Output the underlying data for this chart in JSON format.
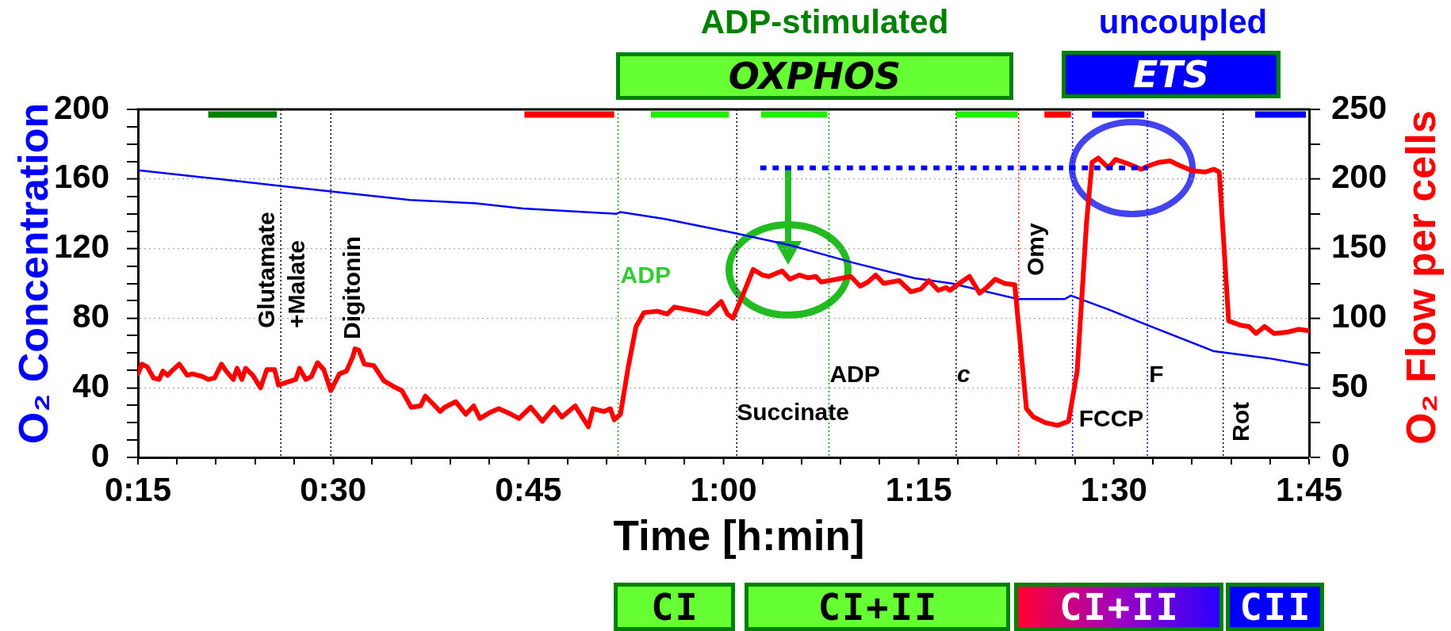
{
  "chart_data": {
    "type": "line",
    "xlabel": "Time [h:min]",
    "ylabel": "O₂ Concentration",
    "y2label": "O₂ Flow per cells",
    "xlim": [
      0.25,
      1.75
    ],
    "xticks": [
      {
        "value": 0.25,
        "label": "0:15"
      },
      {
        "value": 0.3,
        "label": null
      },
      {
        "value": 0.35,
        "label": null
      },
      {
        "value": 0.4,
        "label": null
      },
      {
        "value": 0.45,
        "label": null
      },
      {
        "value": 0.5,
        "label": "0:30"
      },
      {
        "value": 0.55,
        "label": null
      },
      {
        "value": 0.6,
        "label": null
      },
      {
        "value": 0.65,
        "label": null
      },
      {
        "value": 0.7,
        "label": null
      },
      {
        "value": 0.75,
        "label": "0:45"
      },
      {
        "value": 0.8,
        "label": null
      },
      {
        "value": 0.85,
        "label": null
      },
      {
        "value": 0.9,
        "label": null
      },
      {
        "value": 0.95,
        "label": null
      },
      {
        "value": 1,
        "label": "1:00"
      },
      {
        "value": 1.05,
        "label": null
      },
      {
        "value": 1.1,
        "label": null
      },
      {
        "value": 1.15,
        "label": null
      },
      {
        "value": 1.2,
        "label": null
      },
      {
        "value": 1.25,
        "label": "1:15"
      },
      {
        "value": 1.3,
        "label": null
      },
      {
        "value": 1.35,
        "label": null
      },
      {
        "value": 1.4,
        "label": null
      },
      {
        "value": 1.45,
        "label": null
      },
      {
        "value": 1.5,
        "label": "1:30"
      },
      {
        "value": 1.55,
        "label": null
      },
      {
        "value": 1.6,
        "label": null
      },
      {
        "value": 1.65,
        "label": null
      },
      {
        "value": 1.7,
        "label": null
      },
      {
        "value": 1.75,
        "label": "1:45"
      }
    ],
    "ylim": [
      0,
      200
    ],
    "yticks": [
      0,
      {
        "value": 10,
        "label": null
      },
      {
        "value": 20,
        "label": null
      },
      {
        "value": 30,
        "label": null
      },
      40,
      {
        "value": 50,
        "label": null
      },
      {
        "value": 60,
        "label": null
      },
      {
        "value": 70,
        "label": null
      },
      80,
      {
        "value": 90,
        "label": null
      },
      {
        "value": 100,
        "label": null
      },
      {
        "value": 110,
        "label": null
      },
      120,
      {
        "value": 130,
        "label": null
      },
      {
        "value": 140,
        "label": null
      },
      {
        "value": 150,
        "label": null
      },
      160,
      {
        "value": 170,
        "label": null
      },
      {
        "value": 180,
        "label": null
      },
      {
        "value": 190,
        "label": null
      },
      200
    ],
    "y2lim": [
      0,
      250
    ],
    "y2ticks": [
      0,
      {
        "value": 25,
        "label": null
      },
      50,
      {
        "value": 75,
        "label": null
      },
      100,
      {
        "value": 125,
        "label": null
      },
      150,
      {
        "value": 175,
        "label": null
      },
      200,
      {
        "value": 225,
        "label": null
      },
      250
    ],
    "series": [
      {
        "color": "#0000ff",
        "x": [
          0.25,
          0.353,
          0.432,
          0.495,
          0.598,
          0.683,
          0.743,
          0.863,
          0.868,
          0.925,
          1.013,
          1.085,
          1.165,
          1.245,
          1.292,
          1.377,
          1.437,
          1.445,
          1.493,
          1.543,
          1.628,
          1.698,
          1.75
        ],
        "values": [
          165,
          160,
          156,
          153,
          148,
          146,
          143,
          140,
          141,
          137,
          129,
          122,
          112,
          103,
          100,
          91,
          91,
          93,
          85,
          76,
          61,
          57,
          53
        ]
      },
      {
        "color": "#ff0000",
        "axis": "y2",
        "x": [
          0.25,
          0.255,
          0.262,
          0.27,
          0.277,
          0.282,
          0.288,
          0.295,
          0.303,
          0.313,
          0.32,
          0.333,
          0.34,
          0.348,
          0.357,
          0.363,
          0.372,
          0.377,
          0.383,
          0.388,
          0.397,
          0.407,
          0.415,
          0.425,
          0.43,
          0.452,
          0.457,
          0.465,
          0.472,
          0.48,
          0.488,
          0.497,
          0.508,
          0.517,
          0.525,
          0.528,
          0.533,
          0.54,
          0.552,
          0.565,
          0.577,
          0.588,
          0.6,
          0.612,
          0.618,
          0.627,
          0.637,
          0.643,
          0.657,
          0.67,
          0.68,
          0.688,
          0.7,
          0.712,
          0.728,
          0.738,
          0.753,
          0.768,
          0.783,
          0.793,
          0.81,
          0.827,
          0.833,
          0.847,
          0.855,
          0.86,
          0.868,
          0.878,
          0.888,
          0.898,
          0.915,
          0.928,
          0.937,
          0.965,
          0.98,
          0.997,
          1.005,
          1.012,
          1.025,
          1.038,
          1.05,
          1.058,
          1.075,
          1.085,
          1.097,
          1.108,
          1.118,
          1.125,
          1.145,
          1.163,
          1.175,
          1.185,
          1.195,
          1.205,
          1.225,
          1.24,
          1.253,
          1.263,
          1.275,
          1.285,
          1.29,
          1.302,
          1.315,
          1.328,
          1.337,
          1.348,
          1.36,
          1.373,
          1.388,
          1.397,
          1.412,
          1.428,
          1.442,
          1.453,
          1.465,
          1.472,
          1.48,
          1.493,
          1.502,
          1.518,
          1.535,
          1.547,
          1.558,
          1.572,
          1.583,
          1.6,
          1.617,
          1.628,
          1.635,
          1.647,
          1.662,
          1.673,
          1.682,
          1.693,
          1.705,
          1.722,
          1.737,
          1.75
        ],
        "values": [
          60,
          67,
          65,
          57,
          56,
          62,
          59,
          63,
          67,
          59,
          60,
          58,
          56,
          57,
          67,
          62,
          56,
          64,
          56,
          64,
          59,
          50,
          63,
          63,
          52,
          56,
          64,
          56,
          58,
          68,
          63,
          48,
          60,
          62,
          72,
          78,
          77,
          67,
          66,
          55,
          51,
          48,
          36,
          37,
          44,
          39,
          33,
          36,
          40,
          31,
          37,
          28,
          32,
          35,
          31,
          28,
          36,
          26,
          36,
          29,
          37,
          22,
          35,
          33,
          35,
          27,
          31,
          65,
          94,
          104,
          105,
          103,
          108,
          105,
          103,
          112,
          103,
          100,
          117,
          135,
          131,
          130,
          134,
          128,
          131,
          129,
          130,
          126,
          128,
          130,
          123,
          126,
          131,
          125,
          127,
          119,
          121,
          127,
          120,
          122,
          120,
          125,
          130,
          118,
          122,
          128,
          125,
          124,
          35,
          29,
          25,
          23,
          26,
          62,
          169,
          212,
          215,
          208,
          214,
          211,
          207,
          210,
          212,
          213,
          210,
          206,
          205,
          207,
          205,
          98,
          95,
          94,
          89,
          94,
          89,
          90,
          92,
          91
        ]
      },
      {
        "color": "#0000ff",
        "axis": "y2",
        "line_style": "dotted",
        "x": [
          1.047,
          1.543
        ],
        "values": [
          208,
          208
        ]
      },
      {
        "color": "#008000",
        "x": [
          0.34,
          0.428
        ],
        "values": [
          197,
          197
        ]
      },
      {
        "color": "#ff0000",
        "x": [
          0.745,
          0.86
        ],
        "values": [
          197,
          197
        ]
      },
      {
        "color": "#22ee00",
        "x": [
          0.907,
          1.007
        ],
        "values": [
          197,
          197
        ]
      },
      {
        "color": "#22ee00",
        "x": [
          1.048,
          1.133
        ],
        "values": [
          197,
          197
        ]
      },
      {
        "color": "#22ee00",
        "x": [
          1.298,
          1.377
        ],
        "values": [
          197,
          197
        ]
      },
      {
        "color": "#ff0000",
        "x": [
          1.411,
          1.445
        ],
        "values": [
          197,
          197
        ]
      },
      {
        "color": "#0000ff",
        "x": [
          1.472,
          1.539
        ],
        "values": [
          197,
          197
        ]
      },
      {
        "color": "#0000ff",
        "x": [
          1.681,
          1.746
        ],
        "values": [
          197,
          197
        ]
      }
    ],
    "ref_lines": [
      {
        "axis": "x",
        "value": 0.433,
        "label": "Glutamate +Malate",
        "color": "#000000",
        "line_style": "dotted"
      },
      {
        "axis": "x",
        "value": 0.497,
        "label": "Digitonin",
        "color": "#000000",
        "line_style": "dotted"
      },
      {
        "axis": "x",
        "value": 0.865,
        "label": "ADP",
        "color": "#009900",
        "line_style": "dotted"
      },
      {
        "axis": "x",
        "value": 1.017,
        "label": "Succinate",
        "color": "#000000",
        "line_style": "dotted"
      },
      {
        "axis": "x",
        "value": 1.135,
        "label": "ADP",
        "color": "#009900",
        "line_style": "dotted"
      },
      {
        "axis": "x",
        "value": 1.298,
        "label": "c",
        "color": "#000000",
        "line_style": "dotted"
      },
      {
        "axis": "x",
        "value": 1.378,
        "label": "Omy",
        "color": "#ff0000",
        "line_style": "dotted"
      },
      {
        "axis": "x",
        "value": 1.447,
        "label": "FCCP",
        "color": "#0000ff",
        "line_style": "dotted"
      },
      {
        "axis": "x",
        "value": 1.543,
        "label": "F",
        "color": "#0000ff",
        "line_style": "dotted"
      },
      {
        "axis": "x",
        "value": 1.64,
        "label": "Rot",
        "color": "#000000",
        "line_style": "dotted"
      }
    ],
    "annotations": [
      "ADP-stimulated",
      "OXPHOS",
      "uncoupled",
      "ETS",
      "CI",
      "CI+II",
      "CI+II",
      "CII"
    ],
    "grid": "y",
    "legend": false,
    "marker": "none"
  }
}
